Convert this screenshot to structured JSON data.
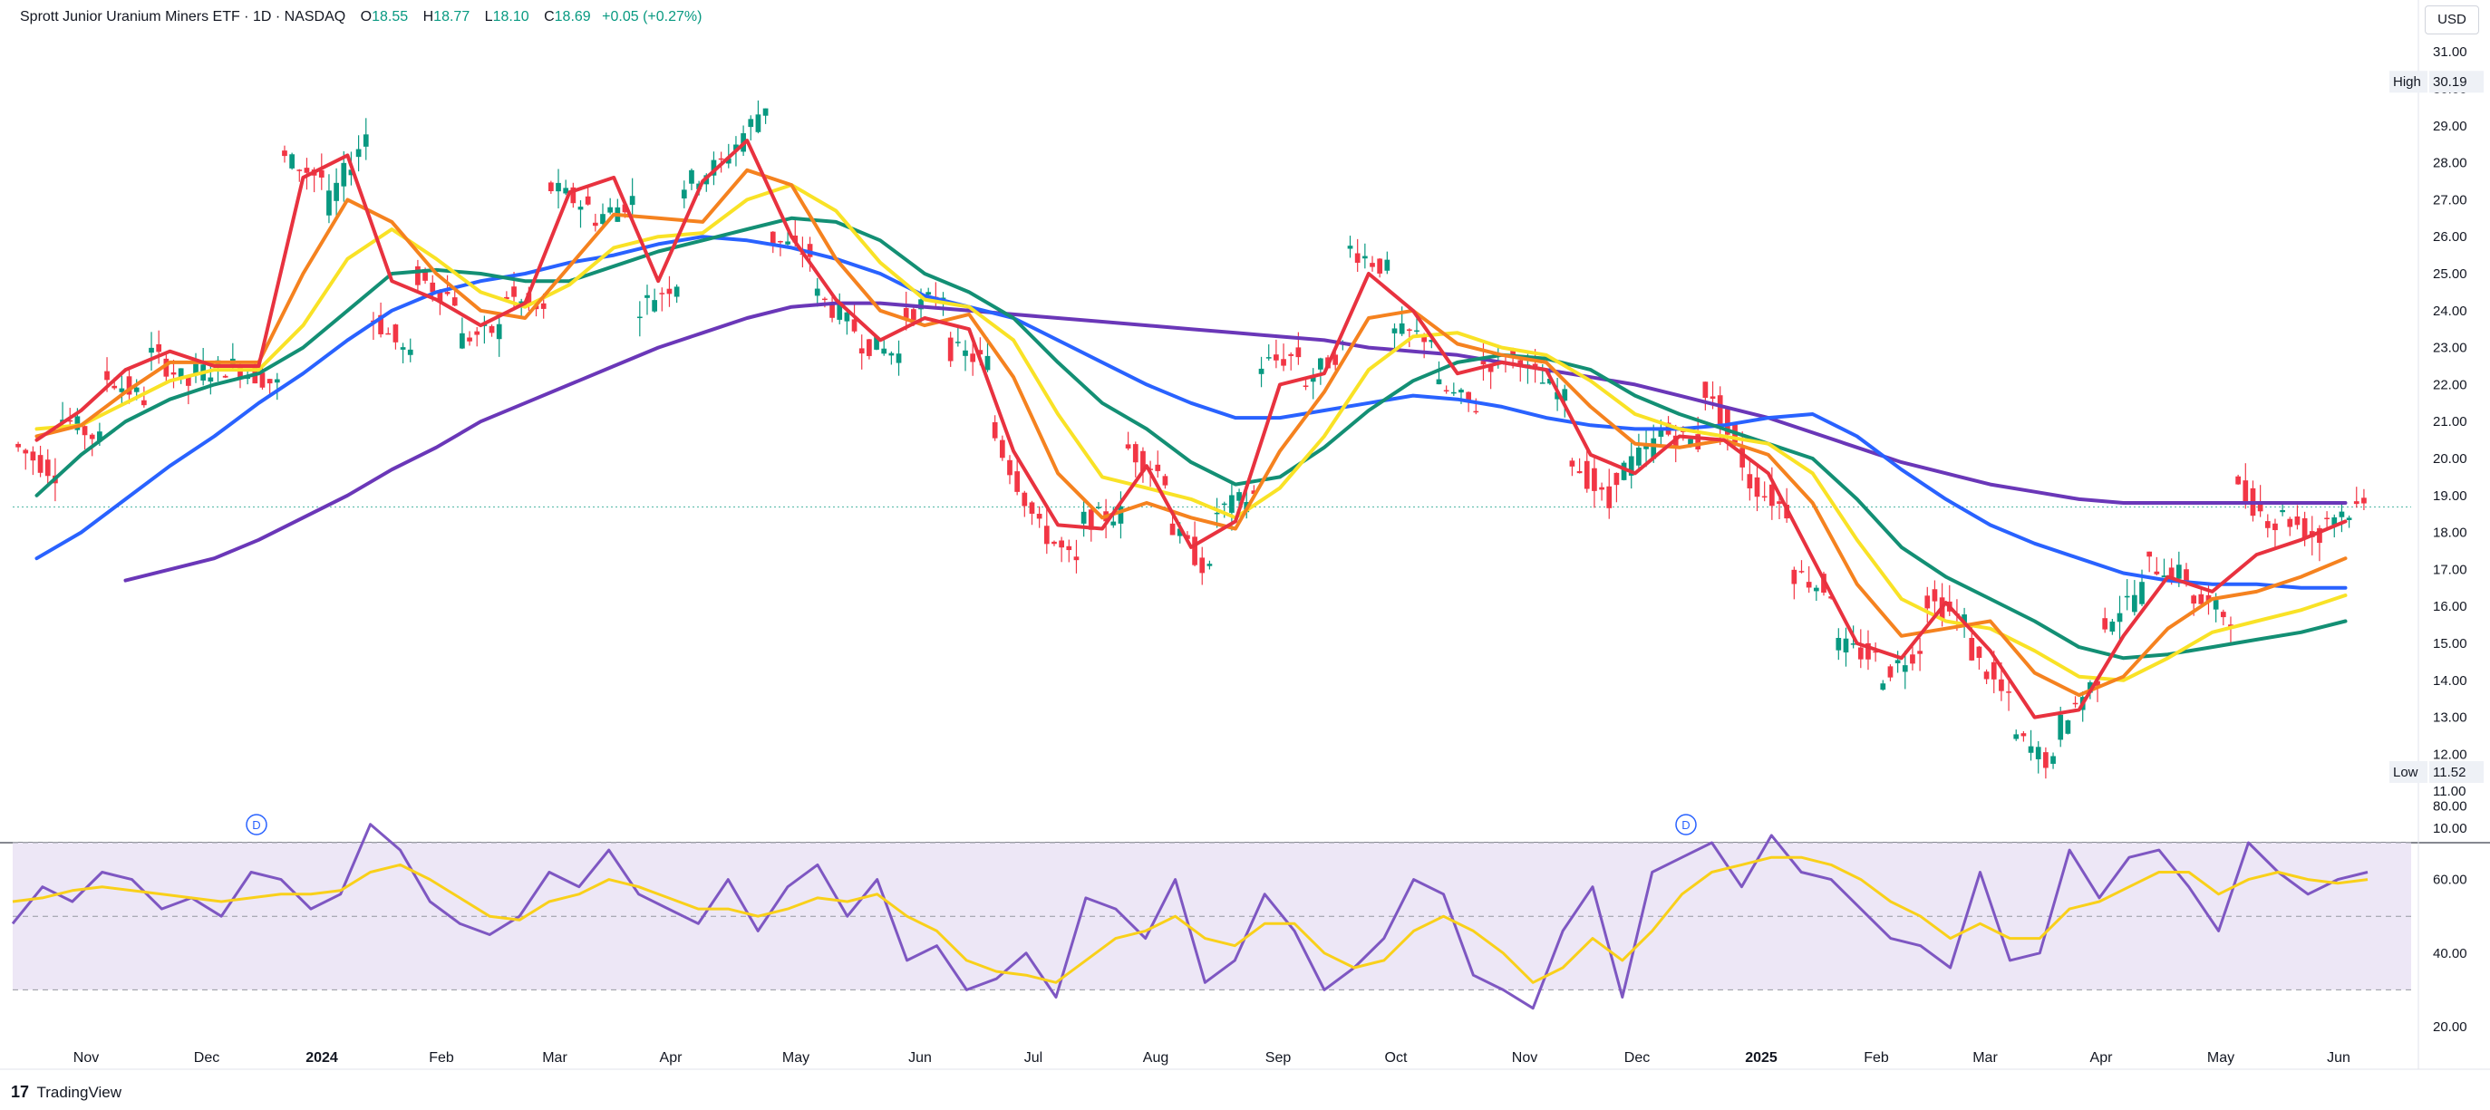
{
  "header": {
    "symbol": "Sprott Junior Uranium Miners ETF · 1D · NASDAQ",
    "o_label": "O",
    "o_value": "18.55",
    "h_label": "H",
    "h_value": "18.77",
    "l_label": "L",
    "l_value": "18.10",
    "c_label": "C",
    "c_value": "18.69",
    "change": "+0.05 (+0.27%)",
    "currency": "USD"
  },
  "footer": {
    "brand": "TradingView",
    "logo_glyph": "17"
  },
  "colors": {
    "up": "#089981",
    "down": "#f23645",
    "ma1": "#e8323f",
    "ma2": "#f5821f",
    "ma3": "#f9e226",
    "ma4": "#138f74",
    "ma5": "#2962ff",
    "ma6": "#6a37b8",
    "rsi": "#7e57c2",
    "rsi_ma": "#f9d01a",
    "rsi_band": "#ede7f6"
  },
  "chart_data": [
    {
      "type": "candlestick",
      "title": "Sprott Junior Uranium Miners ETF",
      "interval": "1D",
      "exchange": "NASDAQ",
      "y_ticks": [
        "31.00",
        "30.00",
        "29.00",
        "28.00",
        "27.00",
        "26.00",
        "25.00",
        "24.00",
        "23.00",
        "22.00",
        "21.00",
        "20.00",
        "19.00",
        "18.00",
        "17.00",
        "16.00",
        "15.00",
        "14.00",
        "13.00",
        "12.00",
        "11.00",
        "10.00"
      ],
      "ylim": [
        10,
        31.5
      ],
      "x_ticks": [
        {
          "label": "Nov",
          "bold": false
        },
        {
          "label": "Dec",
          "bold": false
        },
        {
          "label": "2024",
          "bold": true
        },
        {
          "label": "Feb",
          "bold": false
        },
        {
          "label": "Mar",
          "bold": false
        },
        {
          "label": "Apr",
          "bold": false
        },
        {
          "label": "May",
          "bold": false
        },
        {
          "label": "Jun",
          "bold": false
        },
        {
          "label": "Jul",
          "bold": false
        },
        {
          "label": "Aug",
          "bold": false
        },
        {
          "label": "Sep",
          "bold": false
        },
        {
          "label": "Oct",
          "bold": false
        },
        {
          "label": "Nov",
          "bold": false
        },
        {
          "label": "Dec",
          "bold": false
        },
        {
          "label": "2025",
          "bold": true
        },
        {
          "label": "Feb",
          "bold": false
        },
        {
          "label": "Mar",
          "bold": false
        },
        {
          "label": "Apr",
          "bold": false
        },
        {
          "label": "May",
          "bold": false
        },
        {
          "label": "Jun",
          "bold": false
        }
      ],
      "high_label": "High",
      "high_value": "30.19",
      "low_label": "Low",
      "low_value": "11.52",
      "last_price": 18.69,
      "dividend_markers": [
        "D",
        "D"
      ],
      "close_path": [
        [
          20.4,
          19.6
        ],
        [
          21.2,
          20.5
        ],
        [
          22.3,
          21.6
        ],
        [
          23.0,
          22.0
        ],
        [
          22.3,
          22.5
        ],
        [
          22.5,
          22.0
        ],
        [
          28.2,
          27.6
        ],
        [
          26.6,
          28.8
        ],
        [
          24.0,
          22.7
        ],
        [
          25.0,
          24.3
        ],
        [
          23.2,
          23.5
        ],
        [
          24.5,
          23.9
        ],
        [
          27.4,
          26.8
        ],
        [
          26.4,
          27.0
        ],
        [
          24.0,
          24.8
        ],
        [
          27.3,
          28.0
        ],
        [
          28.0,
          29.6
        ],
        [
          26.0,
          25.5
        ],
        [
          24.6,
          23.5
        ],
        [
          23.2,
          22.8
        ],
        [
          23.8,
          24.5
        ],
        [
          23.0,
          22.6
        ],
        [
          21.0,
          18.5
        ],
        [
          18.3,
          17.1
        ],
        [
          18.3,
          18.5
        ],
        [
          20.4,
          19.5
        ],
        [
          18.3,
          16.9
        ],
        [
          18.5,
          19.0
        ],
        [
          22.5,
          22.8
        ],
        [
          21.9,
          23.0
        ],
        [
          25.8,
          25.1
        ],
        [
          23.4,
          23.3
        ],
        [
          22.0,
          21.4
        ],
        [
          22.5,
          22.8
        ],
        [
          22.5,
          21.6
        ],
        [
          20.2,
          18.7
        ],
        [
          19.4,
          20.4
        ],
        [
          20.8,
          20.4
        ],
        [
          22.2,
          19.9
        ],
        [
          19.5,
          18.6
        ],
        [
          17.0,
          16.4
        ],
        [
          15.0,
          14.6
        ],
        [
          14.0,
          14.9
        ],
        [
          16.3,
          15.6
        ],
        [
          15.0,
          13.4
        ],
        [
          12.6,
          11.7
        ],
        [
          12.6,
          14.1
        ],
        [
          15.4,
          16.5
        ],
        [
          17.2,
          16.8
        ],
        [
          16.3,
          15.7
        ],
        [
          19.3,
          18.2
        ],
        [
          18.6,
          17.8
        ],
        [
          18.4,
          18.7
        ]
      ],
      "ma_series": [
        {
          "values": [
            20.5,
            21.3,
            22.4,
            22.9,
            22.5,
            22.5,
            27.6,
            28.2,
            24.8,
            24.3,
            23.6,
            24.2,
            27.2,
            27.6,
            24.8,
            27.5,
            28.6,
            26.0,
            24.3,
            23.2,
            23.8,
            23.5,
            20.2,
            18.2,
            18.1,
            19.8,
            17.6,
            18.3,
            22.0,
            22.3,
            25.0,
            24.0,
            22.3,
            22.6,
            22.4,
            20.1,
            19.6,
            20.6,
            20.5,
            19.6,
            17.3,
            15.0,
            14.6,
            16.1,
            14.8,
            13.0,
            13.2,
            15.2,
            16.8,
            16.4,
            17.4,
            17.8,
            18.3
          ]
        },
        {
          "values": [
            20.6,
            20.9,
            21.8,
            22.6,
            22.6,
            22.6,
            25.0,
            27.0,
            26.4,
            25.0,
            24.0,
            23.8,
            25.2,
            26.6,
            26.5,
            26.4,
            27.8,
            27.4,
            25.4,
            24.0,
            23.6,
            23.9,
            22.2,
            19.6,
            18.4,
            18.8,
            18.4,
            18.1,
            20.2,
            21.8,
            23.8,
            24.0,
            23.1,
            22.8,
            22.6,
            21.4,
            20.4,
            20.3,
            20.5,
            20.1,
            18.8,
            16.6,
            15.2,
            15.4,
            15.6,
            14.2,
            13.6,
            14.1,
            15.4,
            16.2,
            16.4,
            16.8,
            17.3
          ]
        },
        {
          "values": [
            20.8,
            20.9,
            21.5,
            22.1,
            22.4,
            22.4,
            23.6,
            25.4,
            26.2,
            25.4,
            24.5,
            24.1,
            24.7,
            25.7,
            26.0,
            26.1,
            27.0,
            27.4,
            26.7,
            25.3,
            24.3,
            24.1,
            23.2,
            21.2,
            19.5,
            19.2,
            18.9,
            18.4,
            19.2,
            20.6,
            22.4,
            23.3,
            23.4,
            23.0,
            22.8,
            22.1,
            21.2,
            20.8,
            20.6,
            20.4,
            19.6,
            17.8,
            16.2,
            15.6,
            15.4,
            14.8,
            14.1,
            14.0,
            14.6,
            15.3,
            15.6,
            15.9,
            16.3
          ]
        },
        {
          "values": [
            19.0,
            20.1,
            21.0,
            21.6,
            22.0,
            22.3,
            23.0,
            24.0,
            25.0,
            25.1,
            25.0,
            24.8,
            24.8,
            25.2,
            25.6,
            25.9,
            26.2,
            26.5,
            26.4,
            25.9,
            25.0,
            24.5,
            23.8,
            22.6,
            21.5,
            20.8,
            19.9,
            19.3,
            19.5,
            20.3,
            21.3,
            22.1,
            22.6,
            22.8,
            22.7,
            22.4,
            21.7,
            21.2,
            20.8,
            20.4,
            20.0,
            18.9,
            17.6,
            16.8,
            16.2,
            15.6,
            14.9,
            14.6,
            14.7,
            14.9,
            15.1,
            15.3,
            15.6
          ]
        },
        {
          "values": [
            17.3,
            18.0,
            18.9,
            19.8,
            20.6,
            21.5,
            22.3,
            23.2,
            24.0,
            24.5,
            24.8,
            25.0,
            25.3,
            25.5,
            25.8,
            26.0,
            25.9,
            25.7,
            25.4,
            25.0,
            24.4,
            24.1,
            23.8,
            23.2,
            22.6,
            22.0,
            21.5,
            21.1,
            21.1,
            21.3,
            21.5,
            21.7,
            21.6,
            21.4,
            21.1,
            20.9,
            20.8,
            20.8,
            20.9,
            21.1,
            21.2,
            20.6,
            19.7,
            18.9,
            18.2,
            17.7,
            17.3,
            16.9,
            16.7,
            16.6,
            16.6,
            16.5,
            16.5
          ]
        },
        {
          "values": [
            null,
            null,
            16.7,
            17.0,
            17.3,
            17.8,
            18.4,
            19.0,
            19.7,
            20.3,
            21.0,
            21.5,
            22.0,
            22.5,
            23.0,
            23.4,
            23.8,
            24.1,
            24.2,
            24.2,
            24.1,
            24.0,
            23.9,
            23.8,
            23.7,
            23.6,
            23.5,
            23.4,
            23.3,
            23.2,
            23.0,
            22.9,
            22.8,
            22.6,
            22.4,
            22.2,
            22.0,
            21.7,
            21.4,
            21.1,
            20.7,
            20.3,
            19.9,
            19.6,
            19.3,
            19.1,
            18.9,
            18.8,
            18.8,
            18.8,
            18.8,
            18.8,
            18.8
          ]
        }
      ]
    },
    {
      "type": "line",
      "title": "RSI",
      "y_ticks": [
        "80.00",
        "60.00",
        "40.00",
        "20.00"
      ],
      "ylim": [
        20,
        80
      ],
      "bands": [
        70,
        50,
        30
      ],
      "rsi": [
        48,
        58,
        54,
        62,
        60,
        52,
        55,
        50,
        62,
        60,
        52,
        56,
        75,
        68,
        54,
        48,
        45,
        50,
        62,
        58,
        68,
        56,
        52,
        48,
        60,
        46,
        58,
        64,
        50,
        60,
        38,
        42,
        30,
        33,
        40,
        28,
        55,
        52,
        44,
        60,
        32,
        38,
        56,
        46,
        30,
        36,
        44,
        60,
        56,
        34,
        30,
        25,
        46,
        58,
        28,
        62,
        66,
        70,
        58,
        72,
        62,
        60,
        52,
        44,
        42,
        36,
        62,
        38,
        40,
        68,
        55,
        66,
        68,
        58,
        46,
        70,
        62,
        56,
        60,
        62
      ],
      "rsi_ma": [
        54,
        55,
        57,
        58,
        57,
        56,
        55,
        54,
        55,
        56,
        56,
        57,
        62,
        64,
        60,
        55,
        50,
        49,
        54,
        56,
        60,
        58,
        55,
        52,
        52,
        50,
        52,
        55,
        54,
        56,
        50,
        46,
        38,
        35,
        34,
        32,
        38,
        44,
        46,
        50,
        44,
        42,
        48,
        48,
        40,
        36,
        38,
        46,
        50,
        46,
        40,
        32,
        36,
        44,
        38,
        46,
        56,
        62,
        64,
        66,
        66,
        64,
        60,
        54,
        50,
        44,
        48,
        44,
        44,
        52,
        54,
        58,
        62,
        62,
        56,
        60,
        62,
        60,
        59,
        60
      ]
    }
  ]
}
